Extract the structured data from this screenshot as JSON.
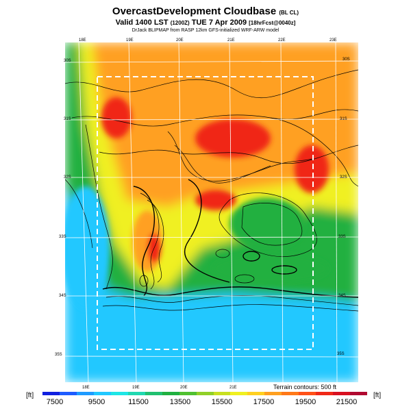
{
  "header": {
    "title": "OvercastDevelopment Cloudbase",
    "title_suffix": "(BL CL)",
    "valid_line": "Valid 1400 LST",
    "valid_zulu": "(1200Z)",
    "valid_date": "TUE 7 Apr 2009",
    "forecast_tag": "[18hrFcst@0040z]",
    "credit": "DrJack BLIPMAP from RASP 12km GFS-initialized WRF-ARW model"
  },
  "map": {
    "lon_top_labels": [
      "18E",
      "19E",
      "20E",
      "21E",
      "22E",
      "23E"
    ],
    "lon_bottom_labels": [
      "18E",
      "19E",
      "20E",
      "21E"
    ],
    "lat_left_labels": [
      "30S",
      "31S",
      "32S",
      "33S",
      "34S",
      "35S"
    ],
    "lat_right_labels": [
      "30S",
      "31S",
      "32S",
      "33S",
      "34S",
      "35S"
    ],
    "terrain_note": "Terrain contours: 500 ft"
  },
  "colorbar": {
    "unit_left": "[ft]",
    "unit_right": "[ft]",
    "tick_labels": [
      "7500",
      "9500",
      "11500",
      "13500",
      "15500",
      "17500",
      "19500",
      "21500"
    ],
    "colors": [
      "#1020e0",
      "#1e5cff",
      "#1e9bff",
      "#20c8ff",
      "#1ee6e6",
      "#20d8b0",
      "#20c070",
      "#20b040",
      "#50c030",
      "#90d028",
      "#c8e020",
      "#f0f020",
      "#ffd020",
      "#ffa020",
      "#ff7818",
      "#ff5018",
      "#f02818",
      "#d81020",
      "#b00830"
    ]
  },
  "fields": {
    "ocean_color": "#20c8ff",
    "land_low_color": "#20b040",
    "mid_color": "#f0f020",
    "high_color": "#ffa020",
    "peak_color": "#f02818"
  }
}
